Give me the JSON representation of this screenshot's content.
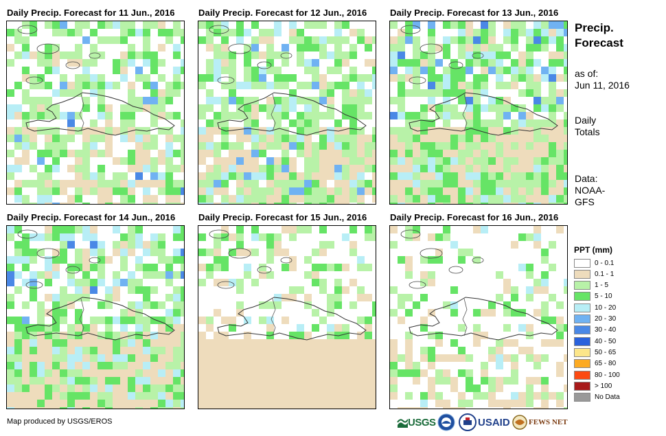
{
  "panels": [
    {
      "title": "Daily Precip. Forecast for 11 Jun., 2016"
    },
    {
      "title": "Daily Precip. Forecast for 12 Jun., 2016"
    },
    {
      "title": "Daily Precip. Forecast for 13 Jun., 2016"
    },
    {
      "title": "Daily Precip. Forecast for 14 Jun., 2016"
    },
    {
      "title": "Daily Precip. Forecast for 15 Jun., 2016"
    },
    {
      "title": "Daily Precip. Forecast for 16 Jun., 2016"
    }
  ],
  "side": {
    "title_line1": "Precip.",
    "title_line2": "Forecast",
    "asof_label": "as of:",
    "asof_date": "Jun 11, 2016",
    "totals_line1": "Daily",
    "totals_line2": "Totals",
    "data_line1": "Data:",
    "data_line2": "NOAA-",
    "data_line3": "GFS"
  },
  "legend": {
    "title": "PPT (mm)",
    "items": [
      {
        "label": "0 - 0.1",
        "color": "#ffffff"
      },
      {
        "label": "0.1 - 1",
        "color": "#eedcbc"
      },
      {
        "label": "1 - 5",
        "color": "#b8f2a8"
      },
      {
        "label": "5 - 10",
        "color": "#66e466"
      },
      {
        "label": "10 - 20",
        "color": "#b8eef6"
      },
      {
        "label": "20 - 30",
        "color": "#70b2f2"
      },
      {
        "label": "30 - 40",
        "color": "#4a88e6"
      },
      {
        "label": "40 - 50",
        "color": "#2a62dc"
      },
      {
        "label": "50 - 65",
        "color": "#fce68a"
      },
      {
        "label": "65 - 80",
        "color": "#fcaa22"
      },
      {
        "label": "80 - 100",
        "color": "#fc4a12"
      },
      {
        "label": "> 100",
        "color": "#a81a1a"
      },
      {
        "label": "No Data",
        "color": "#999999"
      }
    ]
  },
  "footer": {
    "credit": "Map produced by USGS/EROS",
    "logo_usgs": "USGS",
    "logo_usaid": "USAID",
    "logo_fewsnet": "FEWS NET"
  }
}
